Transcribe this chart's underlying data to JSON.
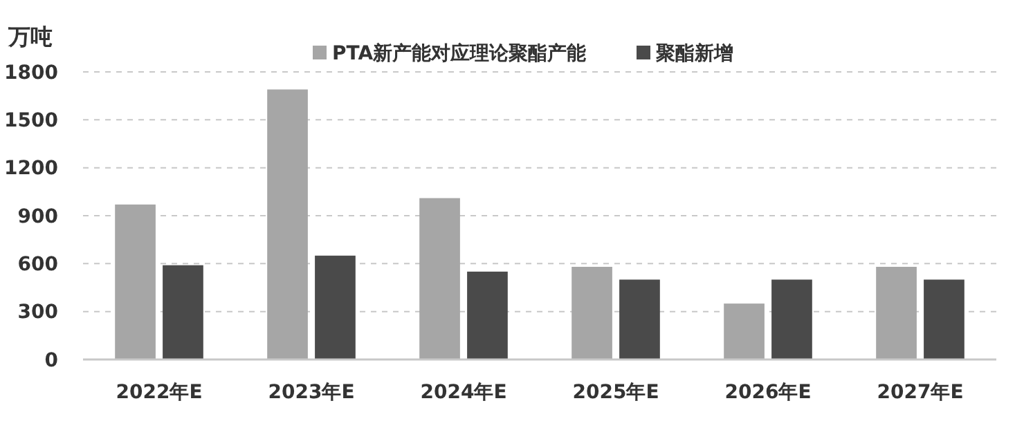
{
  "chart_data": {
    "type": "bar",
    "ylabel": "万吨",
    "categories": [
      "2022年E",
      "2023年E",
      "2024年E",
      "2025年E",
      "2026年E",
      "2027年E"
    ],
    "series": [
      {
        "name": "PTA新产能对应理论聚酯产能",
        "color": "#a6a6a6",
        "values": [
          970,
          1690,
          1010,
          580,
          350,
          580
        ]
      },
      {
        "name": "聚酯新增",
        "color": "#4a4a4a",
        "values": [
          590,
          650,
          550,
          500,
          500,
          500
        ]
      }
    ],
    "ylim": [
      0,
      1800
    ],
    "yticks": [
      0,
      300,
      600,
      900,
      1200,
      1500,
      1800
    ],
    "grid": "y",
    "legend": "top"
  }
}
